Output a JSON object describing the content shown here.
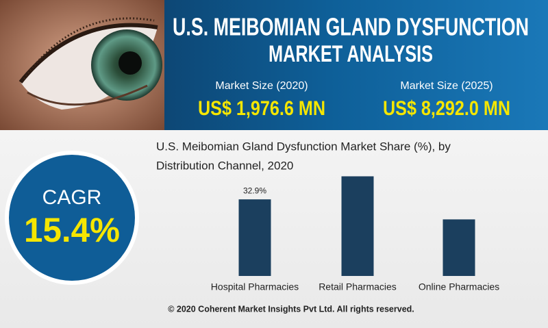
{
  "header": {
    "title_line1": "U.S. MEIBOMIAN GLAND DYSFUNCTION",
    "title_line2": "MARKET ANALYSIS",
    "market_size_2020_label": "Market Size (2020)",
    "market_size_2020_value": "US$ 1,976.6 MN",
    "market_size_2025_label": "Market Size (2025)",
    "market_size_2025_value": "US$ 8,292.0 MN"
  },
  "cagr": {
    "label": "CAGR",
    "value": "15.4%"
  },
  "chart_data": {
    "type": "bar",
    "title_line1": "U.S. Meibomian Gland Dysfunction Market Share (%), by",
    "title_line2": "Distribution Channel, 2020",
    "categories": [
      "Hospital Pharmacies",
      "Retail Pharmacies",
      "Online Pharmacies"
    ],
    "values": [
      32.9,
      42.8,
      24.3
    ],
    "value_labels": [
      "32.9%",
      null,
      null
    ],
    "color": "#1b3f5e",
    "ylim": [
      0,
      45
    ]
  },
  "footer": {
    "text": "© 2020 Coherent Market Insights Pvt Ltd. All rights reserved."
  }
}
